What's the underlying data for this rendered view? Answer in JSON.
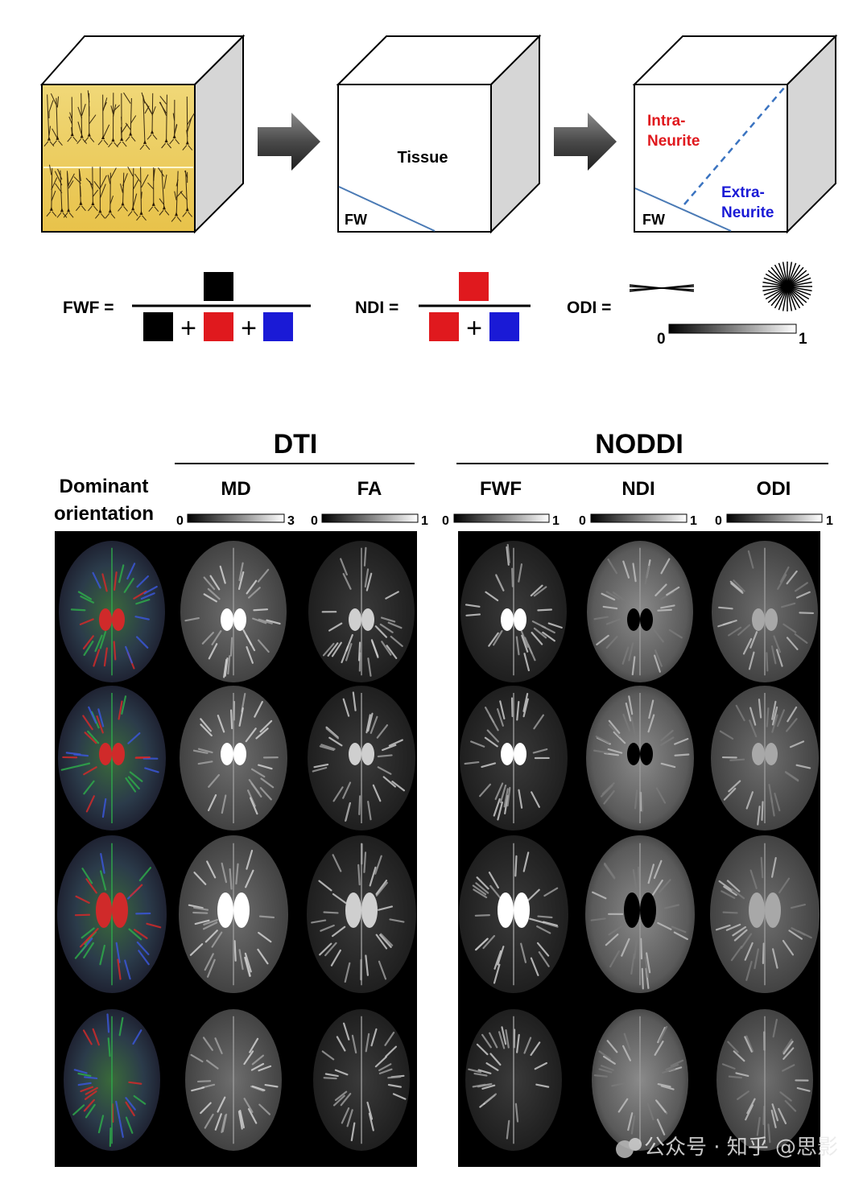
{
  "cubes": [
    {
      "label": ""
    },
    {
      "label": "Tissue",
      "fw_label": "FW"
    },
    {
      "label_intra_1": "Intra-",
      "label_intra_2": "Neurite",
      "label_extra_1": "Extra-",
      "label_extra_2": "Neurite",
      "fw_label": "FW"
    }
  ],
  "formulas": {
    "fwf": {
      "name": "FWF =",
      "plus": "+"
    },
    "ndi": {
      "name": "NDI =",
      "plus": "+"
    },
    "odi": {
      "name": "ODI =",
      "scale_min": "0",
      "scale_max": "1"
    }
  },
  "maps": {
    "group_dti": "DTI",
    "group_noddi": "NODDI",
    "row_label_1": "Dominant",
    "row_label_2": "orientation",
    "columns": [
      {
        "name": "MD",
        "min": "0",
        "max": "3"
      },
      {
        "name": "FA",
        "min": "0",
        "max": "1"
      },
      {
        "name": "FWF",
        "min": "0",
        "max": "1"
      },
      {
        "name": "NDI",
        "min": "0",
        "max": "1"
      },
      {
        "name": "ODI",
        "min": "0",
        "max": "1"
      }
    ]
  },
  "watermark": "公众号 · 知乎 @思影",
  "colors": {
    "intra": "#e0191e",
    "extra": "#1a1ad6",
    "fw_box": "#000000",
    "dashed": "#3a73c0"
  }
}
